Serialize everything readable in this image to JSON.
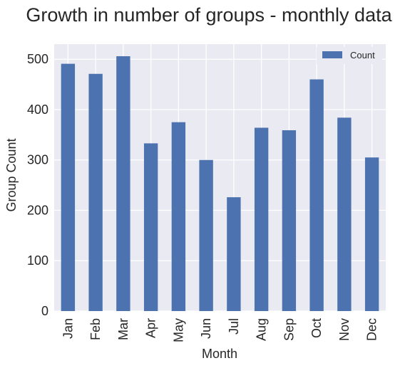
{
  "colors": {
    "bar": "#4c72b0",
    "plot_background": "#eaeaf2",
    "grid": "#ffffff",
    "legend_background": "#eaeaf2"
  },
  "chart_data": {
    "type": "bar",
    "title": "Growth in number of groups - monthly data",
    "xlabel": "Month",
    "ylabel": "Group Count",
    "categories": [
      "Jan",
      "Feb",
      "Mar",
      "Apr",
      "May",
      "Jun",
      "Jul",
      "Aug",
      "Sep",
      "Oct",
      "Nov",
      "Dec"
    ],
    "series": [
      {
        "name": "Count",
        "values": [
          491,
          471,
          506,
          333,
          375,
          300,
          226,
          364,
          359,
          460,
          384,
          305
        ]
      }
    ],
    "ylim": [
      0,
      530
    ],
    "yticks": [
      0,
      100,
      200,
      300,
      400,
      500
    ],
    "grid": true,
    "legend_position": "top-right",
    "x_tick_rotation": "vertical"
  }
}
